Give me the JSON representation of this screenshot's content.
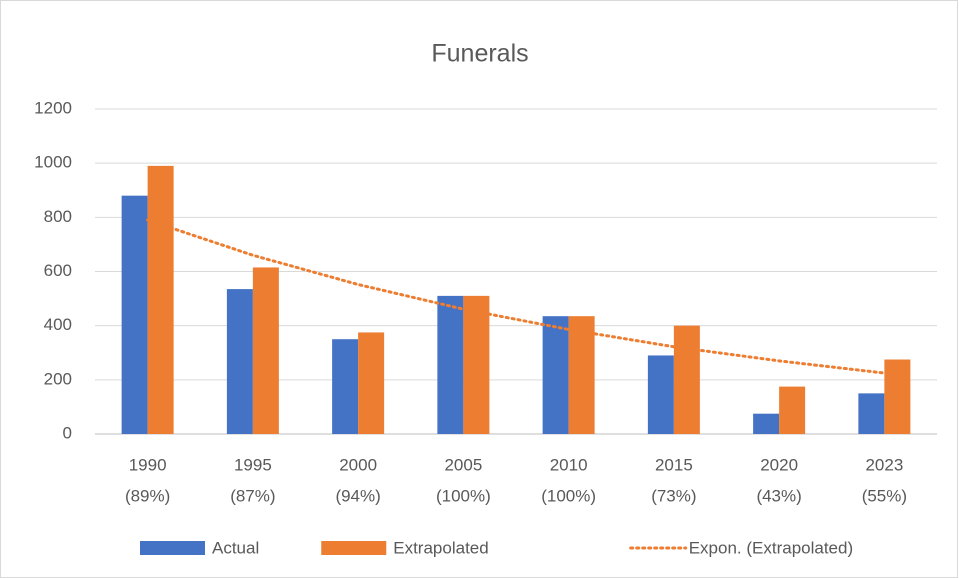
{
  "chart_data": {
    "type": "bar",
    "title": "Funerals",
    "categories": [
      [
        "1990",
        "(89%)"
      ],
      [
        "1995",
        "(87%)"
      ],
      [
        "2000",
        "(94%)"
      ],
      [
        "2005",
        "(100%)"
      ],
      [
        "2010",
        "(100%)"
      ],
      [
        "2015",
        "(73%)"
      ],
      [
        "2020",
        "(43%)"
      ],
      [
        "2023",
        "(55%)"
      ]
    ],
    "series": [
      {
        "name": "Actual",
        "color": "#4472c4",
        "type": "bar",
        "values": [
          880,
          535,
          350,
          510,
          435,
          290,
          75,
          150
        ]
      },
      {
        "name": "Extrapolated",
        "color": "#ed7d31",
        "type": "bar",
        "values": [
          990,
          615,
          375,
          510,
          435,
          400,
          175,
          275
        ]
      },
      {
        "name": "Expon. (Extrapolated)",
        "color": "#ed7d31",
        "type": "line",
        "values": [
          790,
          660,
          552,
          461,
          386,
          322,
          270,
          225
        ]
      }
    ],
    "ylim": [
      0,
      1200
    ],
    "yticks": [
      0,
      200,
      400,
      600,
      800,
      1000,
      1200
    ],
    "grid": true,
    "legend": "bottom"
  }
}
